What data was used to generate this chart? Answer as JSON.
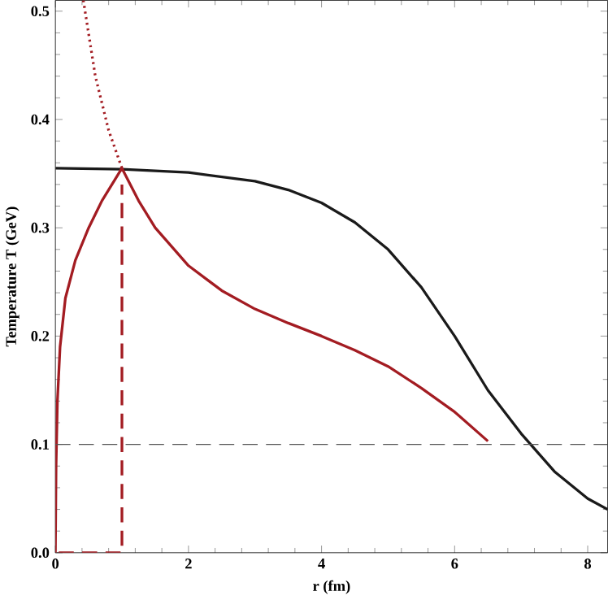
{
  "chart_data": {
    "type": "line",
    "xlabel": "r (fm)",
    "ylabel": "Temperature T (GeV)",
    "xlim": [
      0,
      8.3
    ],
    "ylim": [
      0,
      0.51
    ],
    "xticks": [
      0,
      2,
      4,
      6,
      8
    ],
    "yticks": [
      {
        "value": 0,
        "label": "0.0"
      },
      {
        "value": 0.1,
        "label": "0.1"
      },
      {
        "value": 0.2,
        "label": "0.2"
      },
      {
        "value": 0.3,
        "label": "0.3"
      },
      {
        "value": 0.4,
        "label": "0.4"
      },
      {
        "value": 0.5,
        "label": "0.5"
      }
    ],
    "grid": false,
    "marker": "none",
    "series": [
      {
        "color": "#1a1a1a",
        "line_style": "solid",
        "x": [
          0,
          1,
          2,
          3,
          3.5,
          4,
          4.5,
          5,
          5.5,
          6,
          6.5,
          7,
          7.5,
          8,
          8.3
        ],
        "values": [
          0.355,
          0.354,
          0.351,
          0.343,
          0.335,
          0.323,
          0.305,
          0.28,
          0.245,
          0.2,
          0.15,
          0.11,
          0.075,
          0.05,
          0.04
        ]
      },
      {
        "color": "#a31c22",
        "line_style": "solid",
        "x": [
          0,
          0.01,
          0.03,
          0.07,
          0.15,
          0.3,
          0.5,
          0.7,
          1,
          1.25,
          1.5,
          2,
          2.5,
          3,
          3.5,
          4,
          4.5,
          5,
          5.5,
          6,
          6.5
        ],
        "values": [
          0,
          0.08,
          0.14,
          0.19,
          0.235,
          0.27,
          0.3,
          0.325,
          0.355,
          0.325,
          0.3,
          0.265,
          0.242,
          0.225,
          0.212,
          0.2,
          0.187,
          0.172,
          0.152,
          0.13,
          0.103
        ]
      },
      {
        "color": "#a31c22",
        "line_style": "dotted",
        "x": [
          0.42,
          0.6,
          0.8,
          1
        ],
        "values": [
          0.51,
          0.44,
          0.39,
          0.355
        ]
      },
      {
        "color": "#a31c22",
        "line_style": "dashed",
        "x": [
          0.05,
          1,
          1
        ],
        "values": [
          0,
          0,
          0.34
        ]
      }
    ],
    "ref_lines": [
      {
        "axis": "y",
        "value": 0.1,
        "color": "#555555",
        "line_style": "dashed"
      }
    ]
  }
}
